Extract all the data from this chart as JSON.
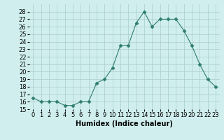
{
  "x": [
    0,
    1,
    2,
    3,
    4,
    5,
    6,
    7,
    8,
    9,
    10,
    11,
    12,
    13,
    14,
    15,
    16,
    17,
    18,
    19,
    20,
    21,
    22,
    23
  ],
  "y": [
    16.5,
    16.0,
    16.0,
    16.0,
    15.5,
    15.5,
    16.0,
    16.0,
    18.5,
    19.0,
    20.5,
    23.5,
    23.5,
    26.5,
    28.0,
    26.0,
    27.0,
    27.0,
    27.0,
    25.5,
    23.5,
    21.0,
    19.0,
    18.0
  ],
  "xlabel": "Humidex (Indice chaleur)",
  "xlim": [
    -0.5,
    23.5
  ],
  "ylim": [
    15,
    29
  ],
  "yticks": [
    15,
    16,
    17,
    18,
    19,
    20,
    21,
    22,
    23,
    24,
    25,
    26,
    27,
    28
  ],
  "xticks": [
    0,
    1,
    2,
    3,
    4,
    5,
    6,
    7,
    8,
    9,
    10,
    11,
    12,
    13,
    14,
    15,
    16,
    17,
    18,
    19,
    20,
    21,
    22,
    23
  ],
  "line_color": "#2e7d6e",
  "marker": "D",
  "marker_size": 2.5,
  "bg_color": "#d0eeee",
  "grid_color": "#aacccc",
  "xlabel_fontsize": 7,
  "tick_fontsize": 6
}
